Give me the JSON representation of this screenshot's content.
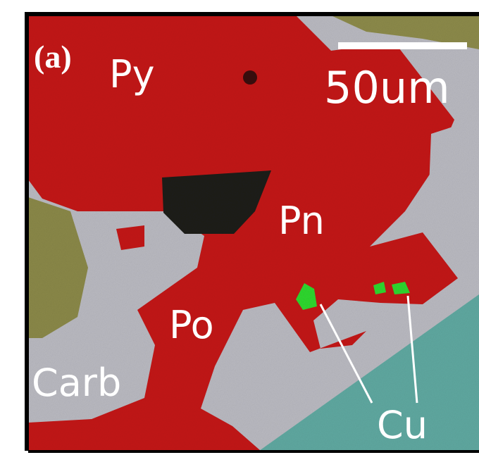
{
  "panel_label": "(a)",
  "scale_bar": {
    "label": "50um"
  },
  "minerals": {
    "py": "Py",
    "pn": "Pn",
    "po": "Po",
    "carb": "Carb",
    "cu": "Cu"
  }
}
